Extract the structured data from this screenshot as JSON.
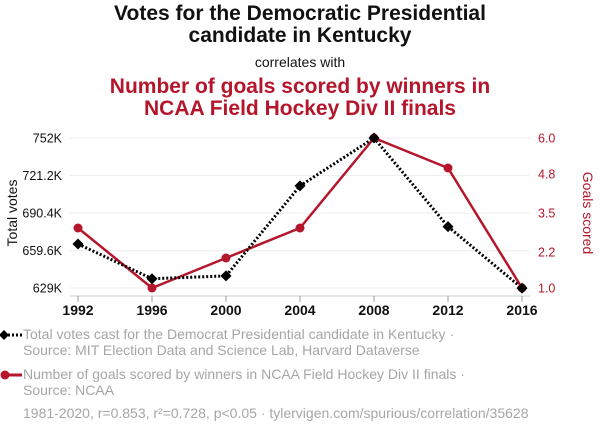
{
  "header": {
    "title": "Votes for the Democratic Presidential candidate in Kentucky",
    "title_line1": "Votes for the Democratic Presidential",
    "title_line2": "candidate in Kentucky",
    "connector": "correlates with",
    "subtitle_line1": "Number of goals scored by winners in",
    "subtitle_line2": "NCAA Field Hockey Div II finals"
  },
  "colors": {
    "series1": "#000000",
    "series2": "#b5162b",
    "grid": "#eeeeee",
    "axis": "#cccccc",
    "muted_text": "#a6a6a6"
  },
  "legend": [
    {
      "marker": "diamond-dotted-line",
      "line1": "Total votes cast for the Democrat Presidential candidate in Kentucky ·",
      "line2": "Source: MIT Election Data and Science Lab, Harvard Dataverse"
    },
    {
      "marker": "circle-solid-line",
      "line1": "Number of goals scored by winners in NCAA Field Hockey Div II finals ·",
      "line2": "Source: NCAA"
    }
  ],
  "footer": "1981-2020, r=0.853, r²=0.728, p<0.05 · tylervigen.com/spurious/correlation/35628",
  "chart_data": {
    "type": "line",
    "title": "Votes for the Democratic Presidential candidate in Kentucky correlates with Number of goals scored by winners in NCAA Field Hockey Div II finals",
    "x": [
      1992,
      1996,
      2000,
      2004,
      2008,
      2012,
      2016
    ],
    "xlabel": "",
    "x_ticks": [
      "1992",
      "1996",
      "2000",
      "2004",
      "2008",
      "2012",
      "2016"
    ],
    "grid": true,
    "series": [
      {
        "name": "Total votes cast for the Democrat Presidential candidate in Kentucky",
        "axis": "left",
        "style": "dotted",
        "marker": "diamond",
        "color": "#000000",
        "values": [
          665104,
          636614,
          638898,
          712733,
          751985,
          679370,
          628854
        ]
      },
      {
        "name": "Number of goals scored by winners in NCAA Field Hockey Div II finals",
        "axis": "right",
        "style": "solid",
        "marker": "circle",
        "color": "#b5162b",
        "values": [
          3,
          1,
          2,
          3,
          6,
          5,
          1
        ]
      }
    ],
    "y_left": {
      "label": "Total votes",
      "range": [
        629000,
        752000
      ],
      "ticks": [
        629000,
        659600,
        690400,
        721200,
        752000
      ],
      "tick_labels": [
        "629K",
        "659.6K",
        "690.4K",
        "721.2K",
        "752K"
      ]
    },
    "y_right": {
      "label": "Goals scored",
      "range": [
        1.0,
        6.0
      ],
      "ticks": [
        1.0,
        2.2,
        3.5,
        4.8,
        6.0
      ],
      "tick_labels": [
        "1.0",
        "2.2",
        "3.5",
        "4.8",
        "6.0"
      ]
    },
    "legend_position": "bottom-left"
  }
}
